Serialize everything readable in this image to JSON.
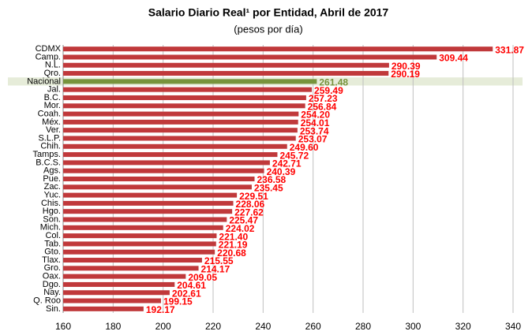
{
  "chart_data": {
    "type": "hbar",
    "title": "Salario Diario Real¹ por Entidad, Abril de 2017",
    "subtitle": "(pesos por día)",
    "categories": [
      "CDMX",
      "Camp.",
      "N.L.",
      "Qro.",
      "Nacional",
      "Jal.",
      "B.C.",
      "Mor.",
      "Coah.",
      "Méx.",
      "Ver.",
      "S.L.P.",
      "Chih.",
      "Tamps.",
      "B.C.S.",
      "Ags.",
      "Pue.",
      "Zac.",
      "Yuc.",
      "Chis.",
      "Hgo.",
      "Son.",
      "Mich.",
      "Col.",
      "Tab.",
      "Gto.",
      "Tlax.",
      "Gro.",
      "Oax.",
      "Dgo.",
      "Nay.",
      "Q. Roo",
      "Sin."
    ],
    "values": [
      331.87,
      309.44,
      290.39,
      290.19,
      261.48,
      259.49,
      257.23,
      256.84,
      254.2,
      254.01,
      253.74,
      253.07,
      249.6,
      245.72,
      242.71,
      240.39,
      236.58,
      235.45,
      229.51,
      228.06,
      227.62,
      225.47,
      224.02,
      221.4,
      221.19,
      220.68,
      215.55,
      214.17,
      209.05,
      204.61,
      202.61,
      199.15,
      192.17
    ],
    "value_labels": [
      "331.87",
      "309.44",
      "290.39",
      "290.19",
      "261.48",
      "259.49",
      "257.23",
      "256.84",
      "254.20",
      "254.01",
      "253.74",
      "253.07",
      "249.60",
      "245.72",
      "242.71",
      "240.39",
      "236.58",
      "235.45",
      "229.51",
      "228.06",
      "227.62",
      "225.47",
      "224.02",
      "221.40",
      "221.19",
      "220.68",
      "215.55",
      "214.17",
      "209.05",
      "204.61",
      "202.61",
      "199.15",
      "192.17"
    ],
    "colors": [
      "#c0393b",
      "#c0393b",
      "#c0393b",
      "#c0393b",
      "#77933c",
      "#c0393b",
      "#c0393b",
      "#c0393b",
      "#c0393b",
      "#c0393b",
      "#c0393b",
      "#c0393b",
      "#c0393b",
      "#c0393b",
      "#c0393b",
      "#c0393b",
      "#c0393b",
      "#c0393b",
      "#c0393b",
      "#c0393b",
      "#c0393b",
      "#c0393b",
      "#c0393b",
      "#c0393b",
      "#c0393b",
      "#c0393b",
      "#c0393b",
      "#c0393b",
      "#c0393b",
      "#c0393b",
      "#c0393b",
      "#c0393b",
      "#c0393b"
    ],
    "xlim": [
      160,
      340
    ],
    "xticks": [
      160,
      180,
      200,
      220,
      240,
      260,
      280,
      300,
      320,
      340
    ],
    "grid": true
  }
}
